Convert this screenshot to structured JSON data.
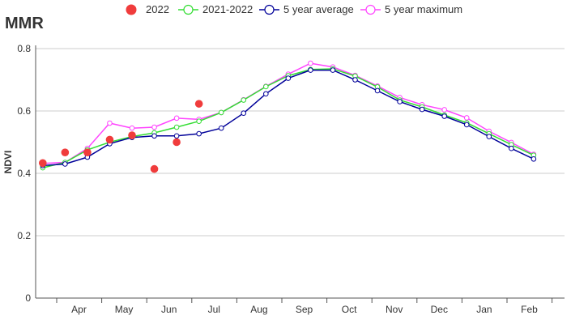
{
  "chart_data": {
    "type": "line",
    "title": "MMR",
    "ylabel": "NDVI",
    "xlabel": "",
    "ylim": [
      0,
      0.8
    ],
    "yticks": [
      0,
      0.2,
      0.4,
      0.6,
      0.8
    ],
    "grid": true,
    "legend_position": "top-center",
    "month_labels": [
      "Apr",
      "May",
      "Jun",
      "Jul",
      "Aug",
      "Sep",
      "Oct",
      "Nov",
      "Dec",
      "Jan",
      "Feb"
    ],
    "x_dekads": [
      1,
      2,
      3,
      4,
      5,
      6,
      7,
      8,
      9,
      10,
      11,
      12,
      13,
      14,
      15,
      16,
      17,
      18,
      19,
      20,
      21,
      22,
      23
    ],
    "series": [
      {
        "name": "2022",
        "style": "points",
        "color": "#f03c3c",
        "x": [
          1,
          2,
          3,
          4,
          5,
          6,
          7,
          8
        ],
        "values": [
          0.433,
          0.467,
          0.467,
          0.508,
          0.522,
          0.414,
          0.5,
          0.623
        ]
      },
      {
        "name": "2021-2022",
        "style": "line",
        "color": "#33dd33",
        "x": [
          1,
          2,
          3,
          4,
          5,
          6,
          7,
          8,
          9,
          10,
          11,
          12,
          13,
          14,
          15,
          16,
          17,
          18,
          19,
          20,
          21,
          22,
          23
        ],
        "values": [
          0.418,
          0.435,
          0.475,
          0.5,
          0.518,
          0.53,
          0.548,
          0.567,
          0.595,
          0.635,
          0.678,
          0.713,
          0.733,
          0.735,
          0.712,
          0.677,
          0.635,
          0.613,
          0.587,
          0.562,
          0.527,
          0.492,
          0.458
        ]
      },
      {
        "name": "5 year average",
        "style": "line",
        "color": "#000099",
        "x": [
          1,
          2,
          3,
          4,
          5,
          6,
          7,
          8,
          9,
          10,
          11,
          12,
          13,
          14,
          15,
          16,
          17,
          18,
          19,
          20,
          21,
          22,
          23
        ],
        "values": [
          0.425,
          0.43,
          0.452,
          0.495,
          0.515,
          0.52,
          0.52,
          0.527,
          0.545,
          0.593,
          0.655,
          0.705,
          0.731,
          0.731,
          0.7,
          0.665,
          0.63,
          0.605,
          0.583,
          0.556,
          0.518,
          0.48,
          0.446
        ]
      },
      {
        "name": "5 year maximum",
        "style": "line",
        "color": "#ff44ff",
        "x": [
          1,
          2,
          3,
          4,
          5,
          6,
          7,
          8,
          9,
          10,
          11,
          12,
          13,
          14,
          15,
          16,
          17,
          18,
          19,
          20,
          21,
          22,
          23
        ],
        "values": [
          0.432,
          0.435,
          0.48,
          0.561,
          0.545,
          0.548,
          0.577,
          0.573,
          0.595,
          0.636,
          0.679,
          0.718,
          0.753,
          0.741,
          0.714,
          0.68,
          0.643,
          0.62,
          0.604,
          0.578,
          0.535,
          0.499,
          0.461
        ]
      }
    ]
  }
}
